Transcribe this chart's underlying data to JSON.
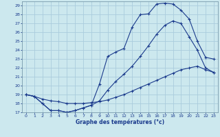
{
  "background_color": "#cce8ee",
  "grid_color": "#aaccdd",
  "line_color": "#1a3a8c",
  "title": "Graphe des températures (°c)",
  "xlim": [
    -0.5,
    23.5
  ],
  "ylim": [
    17,
    29.5
  ],
  "yticks": [
    17,
    18,
    19,
    20,
    21,
    22,
    23,
    24,
    25,
    26,
    27,
    28,
    29
  ],
  "xticks": [
    0,
    1,
    2,
    3,
    4,
    5,
    6,
    7,
    8,
    9,
    10,
    11,
    12,
    13,
    14,
    15,
    16,
    17,
    18,
    19,
    20,
    21,
    22,
    23
  ],
  "line1_x": [
    0,
    1,
    2,
    3,
    4,
    5,
    6,
    7,
    8,
    9,
    10,
    11,
    12,
    13,
    14,
    15,
    16,
    17,
    18,
    19,
    20,
    21,
    22,
    23
  ],
  "line1_y": [
    19.0,
    18.8,
    18.0,
    17.2,
    17.2,
    17.0,
    17.2,
    17.5,
    17.8,
    20.2,
    23.3,
    23.8,
    24.2,
    26.6,
    28.0,
    28.1,
    29.2,
    29.3,
    29.2,
    28.5,
    27.5,
    25.0,
    23.2,
    23.0
  ],
  "line2_x": [
    0,
    1,
    2,
    3,
    4,
    5,
    6,
    7,
    8,
    9,
    10,
    11,
    12,
    13,
    14,
    15,
    16,
    17,
    18,
    19,
    20,
    21,
    22,
    23
  ],
  "line2_y": [
    19.0,
    18.8,
    18.0,
    17.2,
    17.2,
    17.0,
    17.2,
    17.5,
    17.8,
    18.3,
    19.5,
    20.5,
    21.3,
    22.2,
    23.3,
    24.5,
    25.8,
    26.8,
    27.3,
    27.0,
    25.5,
    24.0,
    22.0,
    21.5
  ],
  "line3_x": [
    0,
    1,
    2,
    3,
    4,
    5,
    6,
    7,
    8,
    9,
    10,
    11,
    12,
    13,
    14,
    15,
    16,
    17,
    18,
    19,
    20,
    21,
    22,
    23
  ],
  "line3_y": [
    19.0,
    18.8,
    18.5,
    18.3,
    18.2,
    18.0,
    18.0,
    18.0,
    18.1,
    18.2,
    18.4,
    18.7,
    19.0,
    19.4,
    19.8,
    20.2,
    20.6,
    21.0,
    21.4,
    21.8,
    22.0,
    22.2,
    21.8,
    21.5
  ]
}
